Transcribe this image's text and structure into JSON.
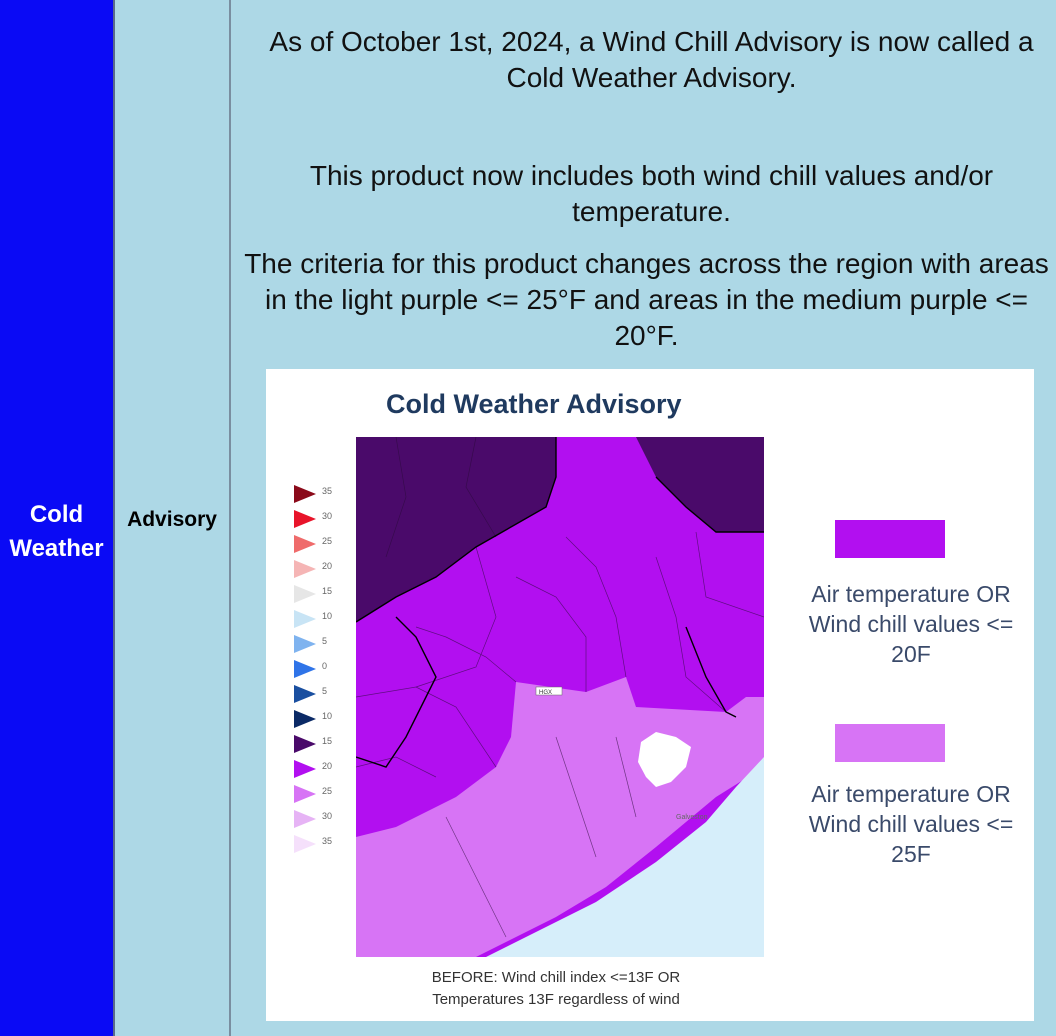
{
  "hazard_label": "Cold Weather",
  "type_label": "Advisory",
  "paragraphs": {
    "p1": "As of October 1st, 2024, a Wind Chill Advisory is now called a Cold Weather Advisory.",
    "p2": "This product now includes both wind chill values and/or temperature.",
    "p3": "The criteria for this product changes across the region with areas in the light purple <= 25°F and areas in the medium purple <= 20°F."
  },
  "map": {
    "title": "Cold Weather Advisory",
    "caption_line1": "BEFORE: Wind chill index <=13F OR",
    "caption_line2": "Temperatures 13F regardless of wind",
    "office_label": "HGX",
    "city_label": "Galveston",
    "scale": [
      {
        "label": "35",
        "color": "#8b0a1a"
      },
      {
        "label": "30",
        "color": "#e8142a"
      },
      {
        "label": "25",
        "color": "#ef6b6b"
      },
      {
        "label": "20",
        "color": "#f5b5b5"
      },
      {
        "label": "15",
        "color": "#e6e6e6"
      },
      {
        "label": "10",
        "color": "#c8e4f5"
      },
      {
        "label": "5",
        "color": "#7fb3ef"
      },
      {
        "label": "0",
        "color": "#2f74e8"
      },
      {
        "label": "5",
        "color": "#1a4fa0"
      },
      {
        "label": "10",
        "color": "#0b2a66"
      },
      {
        "label": "15",
        "color": "#4a0a6a"
      },
      {
        "label": "20",
        "color": "#b20ff0"
      },
      {
        "label": "25",
        "color": "#d774f5"
      },
      {
        "label": "30",
        "color": "#e6b3f5"
      },
      {
        "label": "35",
        "color": "#f5e0fb"
      }
    ]
  },
  "legend": {
    "item1_color": "#b20ff0",
    "item1_text": "Air temperature OR Wind chill values <= 20F",
    "item2_color": "#d774f5",
    "item2_text": "Air temperature OR Wind chill values <= 25F"
  },
  "colors": {
    "hazard_bg": "#0a0af5",
    "page_bg": "#add8e6",
    "dark_purple": "#4a0a6a",
    "medium_purple": "#b20ff0",
    "light_purple": "#d774f5",
    "water": "#d6eefa"
  }
}
